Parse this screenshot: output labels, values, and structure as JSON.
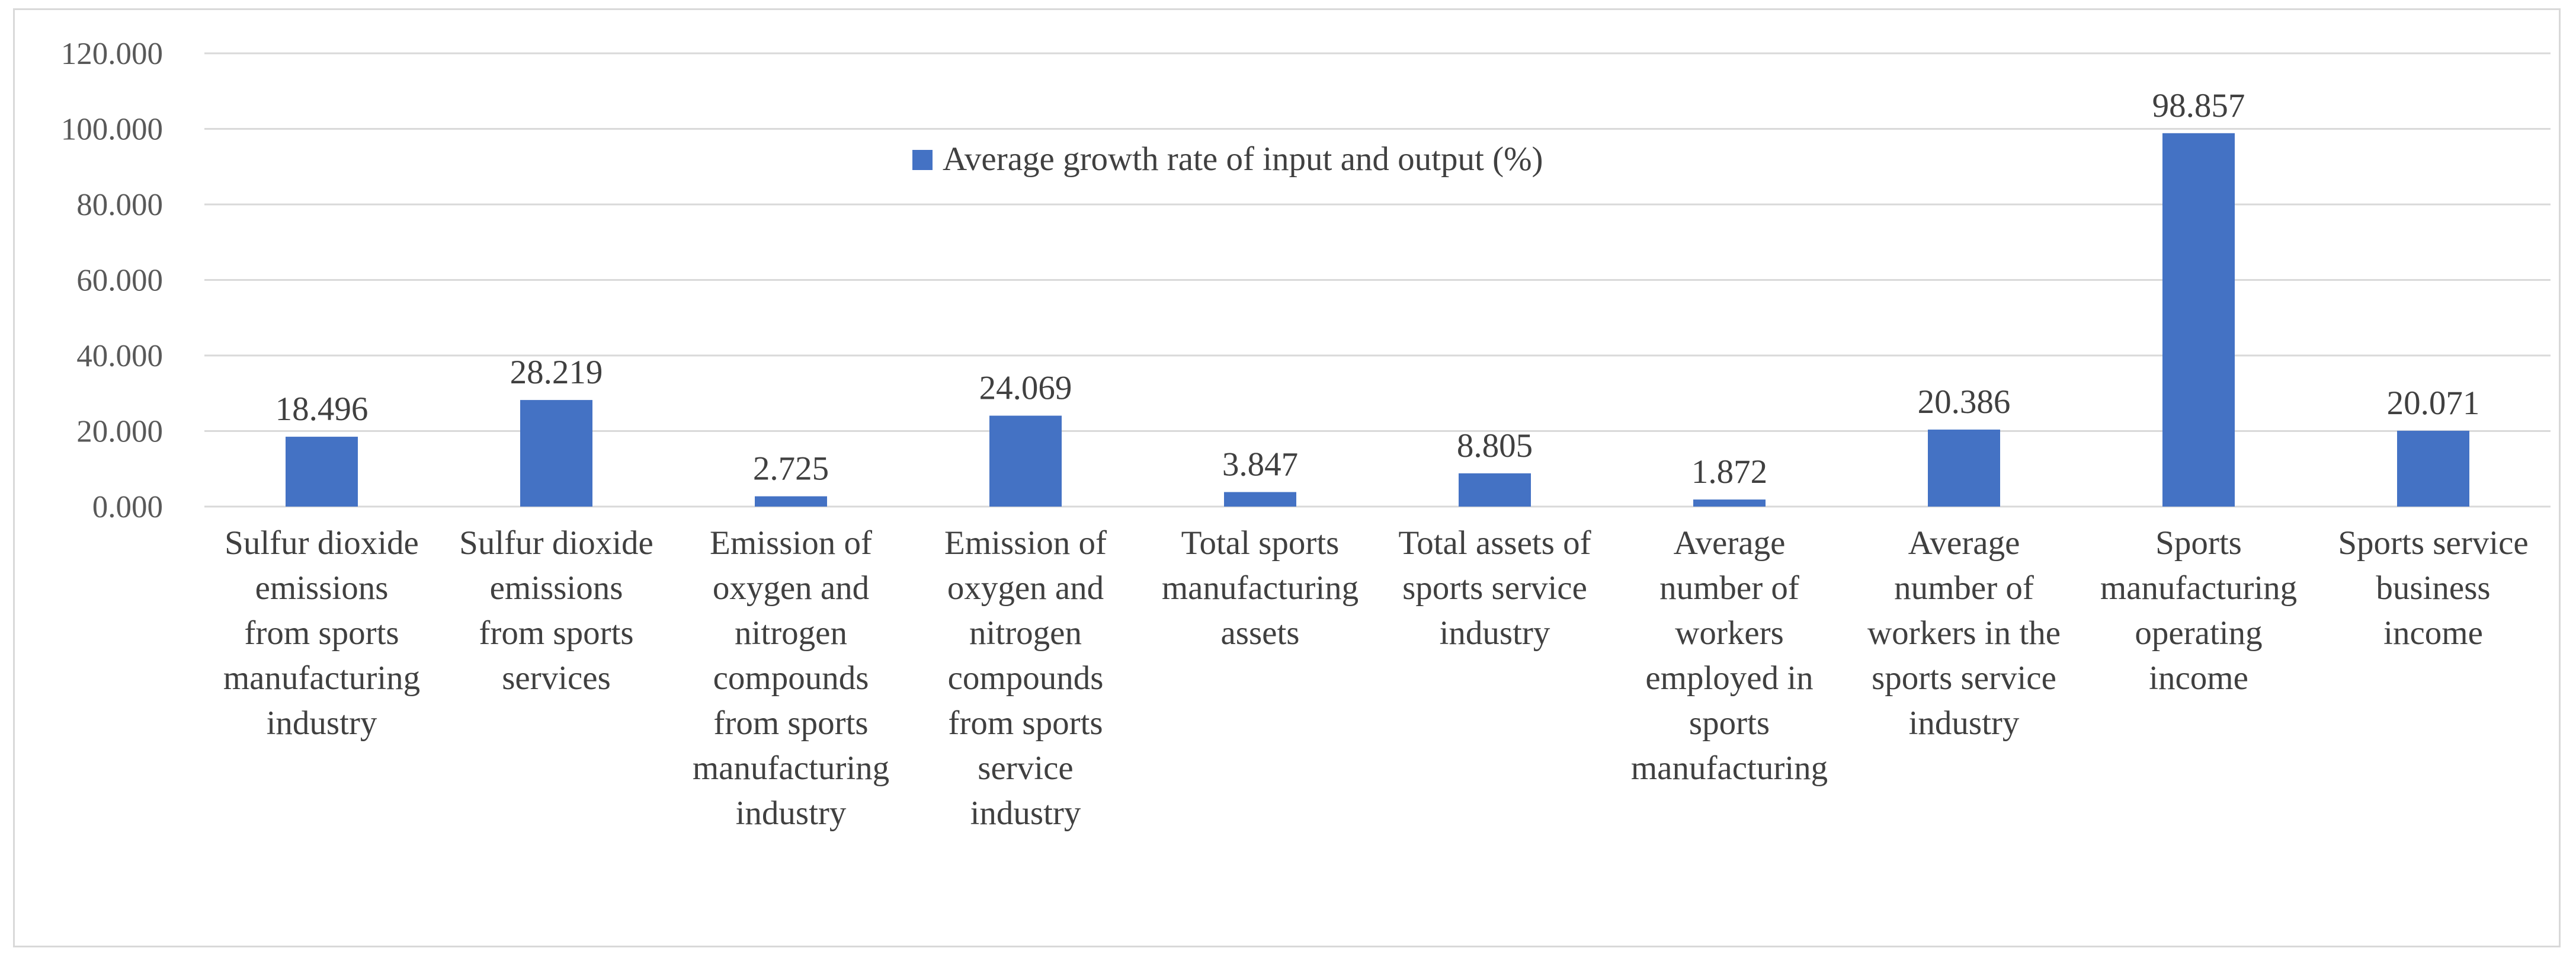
{
  "chart_data": {
    "type": "bar",
    "title": "",
    "xlabel": "",
    "ylabel": "",
    "ylim": [
      0,
      120
    ],
    "ytick_step": 20,
    "ytick_labels": [
      "0.000",
      "20.000",
      "40.000",
      "60.000",
      "80.000",
      "100.000",
      "120.000"
    ],
    "grid": true,
    "legend_position": "top-center",
    "bar_color": "#4472c4",
    "categories": [
      [
        "Sulfur dioxide",
        "emissions",
        "from sports",
        "manufacturing",
        "industry"
      ],
      [
        "Sulfur dioxide",
        "emissions",
        "from sports",
        "services"
      ],
      [
        "Emission of",
        "oxygen and",
        "nitrogen",
        "compounds",
        "from sports",
        "manufacturing",
        "industry"
      ],
      [
        "Emission of",
        "oxygen and",
        "nitrogen",
        "compounds",
        "from sports",
        "service",
        "industry"
      ],
      [
        "Total sports",
        "manufacturing",
        "assets"
      ],
      [
        "Total assets of",
        "sports service",
        "industry"
      ],
      [
        "Average",
        "number of",
        "workers",
        "employed in",
        "sports",
        "manufacturing"
      ],
      [
        "Average",
        "number of",
        "workers in the",
        "sports service",
        "industry"
      ],
      [
        "Sports",
        "manufacturing",
        "operating",
        "income"
      ],
      [
        "Sports service",
        "business",
        "income"
      ]
    ],
    "series": [
      {
        "name": "Average growth rate of input and output (%)",
        "values": [
          18.496,
          28.219,
          2.725,
          24.069,
          3.847,
          8.805,
          1.872,
          20.386,
          98.857,
          20.071
        ],
        "labels": [
          "18.496",
          "28.219",
          "2.725",
          "24.069",
          "3.847",
          "8.805",
          "1.872",
          "20.386",
          "98.857",
          "20.071"
        ]
      }
    ]
  }
}
